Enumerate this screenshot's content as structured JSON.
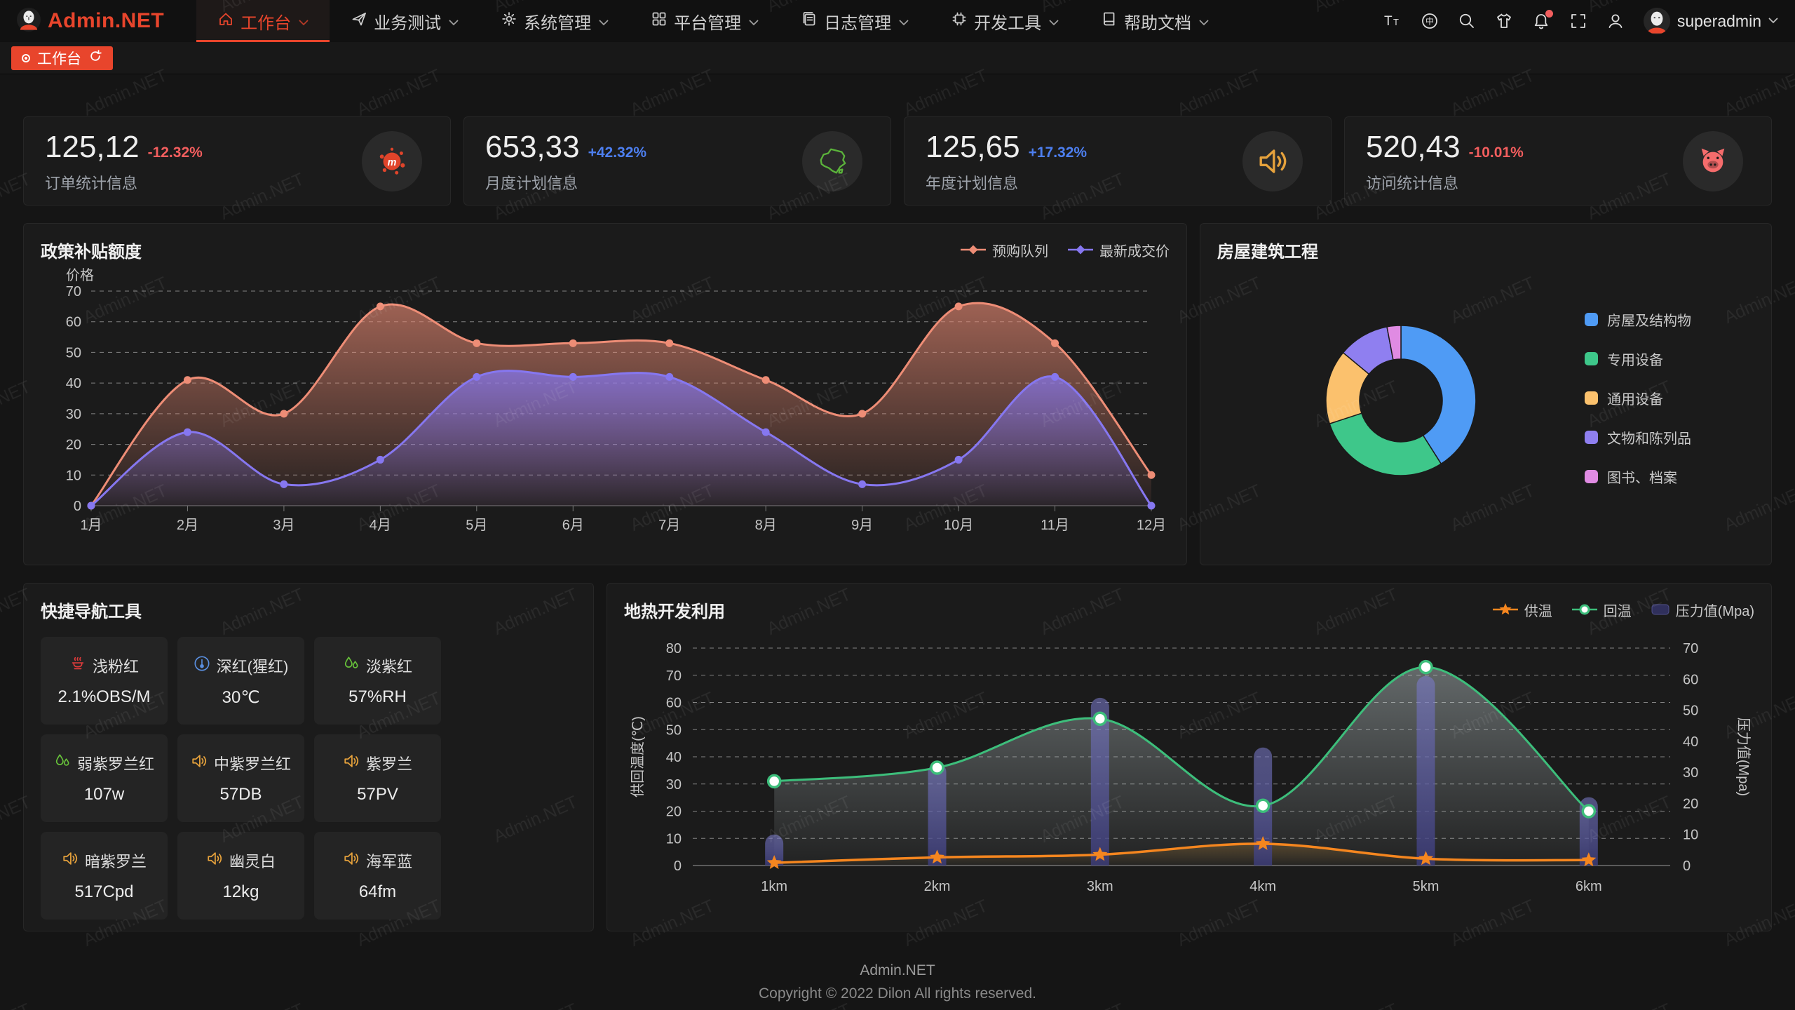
{
  "header": {
    "logo_text": "Admin.NET",
    "menu": [
      {
        "label": "工作台",
        "icon": "home-icon",
        "active": true,
        "has_chevron": true
      },
      {
        "label": "业务测试",
        "icon": "send-icon",
        "active": false,
        "has_chevron": true
      },
      {
        "label": "系统管理",
        "icon": "gear-icon",
        "active": false,
        "has_chevron": true
      },
      {
        "label": "平台管理",
        "icon": "grid-icon",
        "active": false,
        "has_chevron": true
      },
      {
        "label": "日志管理",
        "icon": "log-icon",
        "active": false,
        "has_chevron": true
      },
      {
        "label": "开发工具",
        "icon": "chip-icon",
        "active": false,
        "has_chevron": true
      },
      {
        "label": "帮助文档",
        "icon": "book-icon",
        "active": false,
        "has_chevron": true
      }
    ],
    "right_icons": [
      "font-size-icon",
      "language-icon",
      "search-icon",
      "theme-icon",
      "notification-icon",
      "fullscreen-icon",
      "profile-icon"
    ],
    "notification_badge_color": "#f25e5e",
    "username": "superadmin"
  },
  "tabbar": {
    "active_tab": "工作台"
  },
  "stat_cards": [
    {
      "value": "125,12",
      "delta": "-12.32%",
      "delta_color": "#f35e5e",
      "label": "订单统计信息",
      "icon": "splash-icon",
      "icon_color": "#e0442a"
    },
    {
      "value": "653,33",
      "delta": "+42.32%",
      "delta_color": "#4d7ff0",
      "label": "月度计划信息",
      "icon": "china-map-icon",
      "icon_color": "#5bb33b"
    },
    {
      "value": "125,65",
      "delta": "+17.32%",
      "delta_color": "#4d7ff0",
      "label": "年度计划信息",
      "icon": "horn-icon",
      "icon_color": "#e6a23c"
    },
    {
      "value": "520,43",
      "delta": "-10.01%",
      "delta_color": "#f35e5e",
      "label": "访问统计信息",
      "icon": "pig-icon",
      "icon_color": "#f56c6c"
    }
  ],
  "chart_data": [
    {
      "type": "area",
      "title": "政策补贴额度",
      "ylabel": "价格",
      "categories": [
        "1月",
        "2月",
        "3月",
        "4月",
        "5月",
        "6月",
        "7月",
        "8月",
        "9月",
        "10月",
        "11月",
        "12月"
      ],
      "series": [
        {
          "name": "预购队列",
          "color": "#ee8d76",
          "values": [
            0,
            41,
            30,
            65,
            53,
            53,
            53,
            41,
            30,
            65,
            53,
            10
          ]
        },
        {
          "name": "最新成交价",
          "color": "#8677f0",
          "values": [
            0,
            24,
            7,
            15,
            42,
            42,
            42,
            24,
            7,
            15,
            42,
            0
          ]
        }
      ],
      "ylim": [
        0,
        70
      ],
      "ytick_step": 10,
      "grid": "dashed",
      "legend_position": "top-right"
    },
    {
      "type": "pie",
      "title": "房屋建筑工程",
      "donut": true,
      "legend_position": "right",
      "slices": [
        {
          "label": "房屋及结构物",
          "value": 41,
          "color": "#4f9bf5"
        },
        {
          "label": "专用设备",
          "value": 29,
          "color": "#3ec78a"
        },
        {
          "label": "通用设备",
          "value": 16,
          "color": "#fbc16d"
        },
        {
          "label": "文物和陈列品",
          "value": 11,
          "color": "#8f7ff0"
        },
        {
          "label": "图书、档案",
          "value": 3,
          "color": "#e08be3"
        }
      ]
    },
    {
      "type": "line+bar",
      "title": "地热开发利用",
      "categories": [
        "1km",
        "2km",
        "3km",
        "4km",
        "5km",
        "6km"
      ],
      "ylabel_left": "供回温度(℃)",
      "ylabel_right": "压力值(Mpa)",
      "ylim_left": [
        0,
        80
      ],
      "ylim_right": [
        0,
        70
      ],
      "ytick_step": 10,
      "series": [
        {
          "name": "供温",
          "type": "line",
          "axis": "left",
          "color": "#f5861f",
          "marker": "star",
          "values": [
            1,
            3,
            4,
            8,
            2.5,
            2
          ]
        },
        {
          "name": "回温",
          "type": "line",
          "axis": "left",
          "color": "#3dbe7b",
          "marker": "circle",
          "area": true,
          "values": [
            31,
            36,
            54,
            22,
            73,
            20
          ]
        },
        {
          "name": "压力值(Mpa)",
          "type": "bar",
          "axis": "right",
          "color": "#6c6cbe",
          "values": [
            10,
            33,
            54,
            38,
            61,
            22
          ]
        }
      ]
    }
  ],
  "quick_nav": {
    "title": "快捷导航工具",
    "items": [
      {
        "label": "浅粉红",
        "value": "2.1%OBS/M",
        "icon": "hotpot-icon",
        "icon_color": "#e03b3b"
      },
      {
        "label": "深红(猩红)",
        "value": "30℃",
        "icon": "thermometer-icon",
        "icon_color": "#5a8fe0"
      },
      {
        "label": "淡紫红",
        "value": "57%RH",
        "icon": "humidity-icon",
        "icon_color": "#67c23a"
      },
      {
        "label": "弱紫罗兰红",
        "value": "107w",
        "icon": "humidity-icon",
        "icon_color": "#67c23a"
      },
      {
        "label": "中紫罗兰红",
        "value": "57DB",
        "icon": "horn-icon",
        "icon_color": "#e6a23c"
      },
      {
        "label": "紫罗兰",
        "value": "57PV",
        "icon": "horn-icon",
        "icon_color": "#e6a23c"
      },
      {
        "label": "暗紫罗兰",
        "value": "517Cpd",
        "icon": "horn-icon",
        "icon_color": "#e6a23c"
      },
      {
        "label": "幽灵白",
        "value": "12kg",
        "icon": "horn-icon",
        "icon_color": "#e6a23c"
      },
      {
        "label": "海军蓝",
        "value": "64fm",
        "icon": "horn-icon",
        "icon_color": "#e6a23c"
      }
    ]
  },
  "footer": {
    "line1": "Admin.NET",
    "line2": "Copyright © 2022 Dilon All rights reserved."
  },
  "watermark": {
    "text": "Admin.NET"
  },
  "theme": {
    "accent_red": "#e8452c",
    "panel_bg": "#1b1b1b",
    "page_bg": "#151515"
  }
}
